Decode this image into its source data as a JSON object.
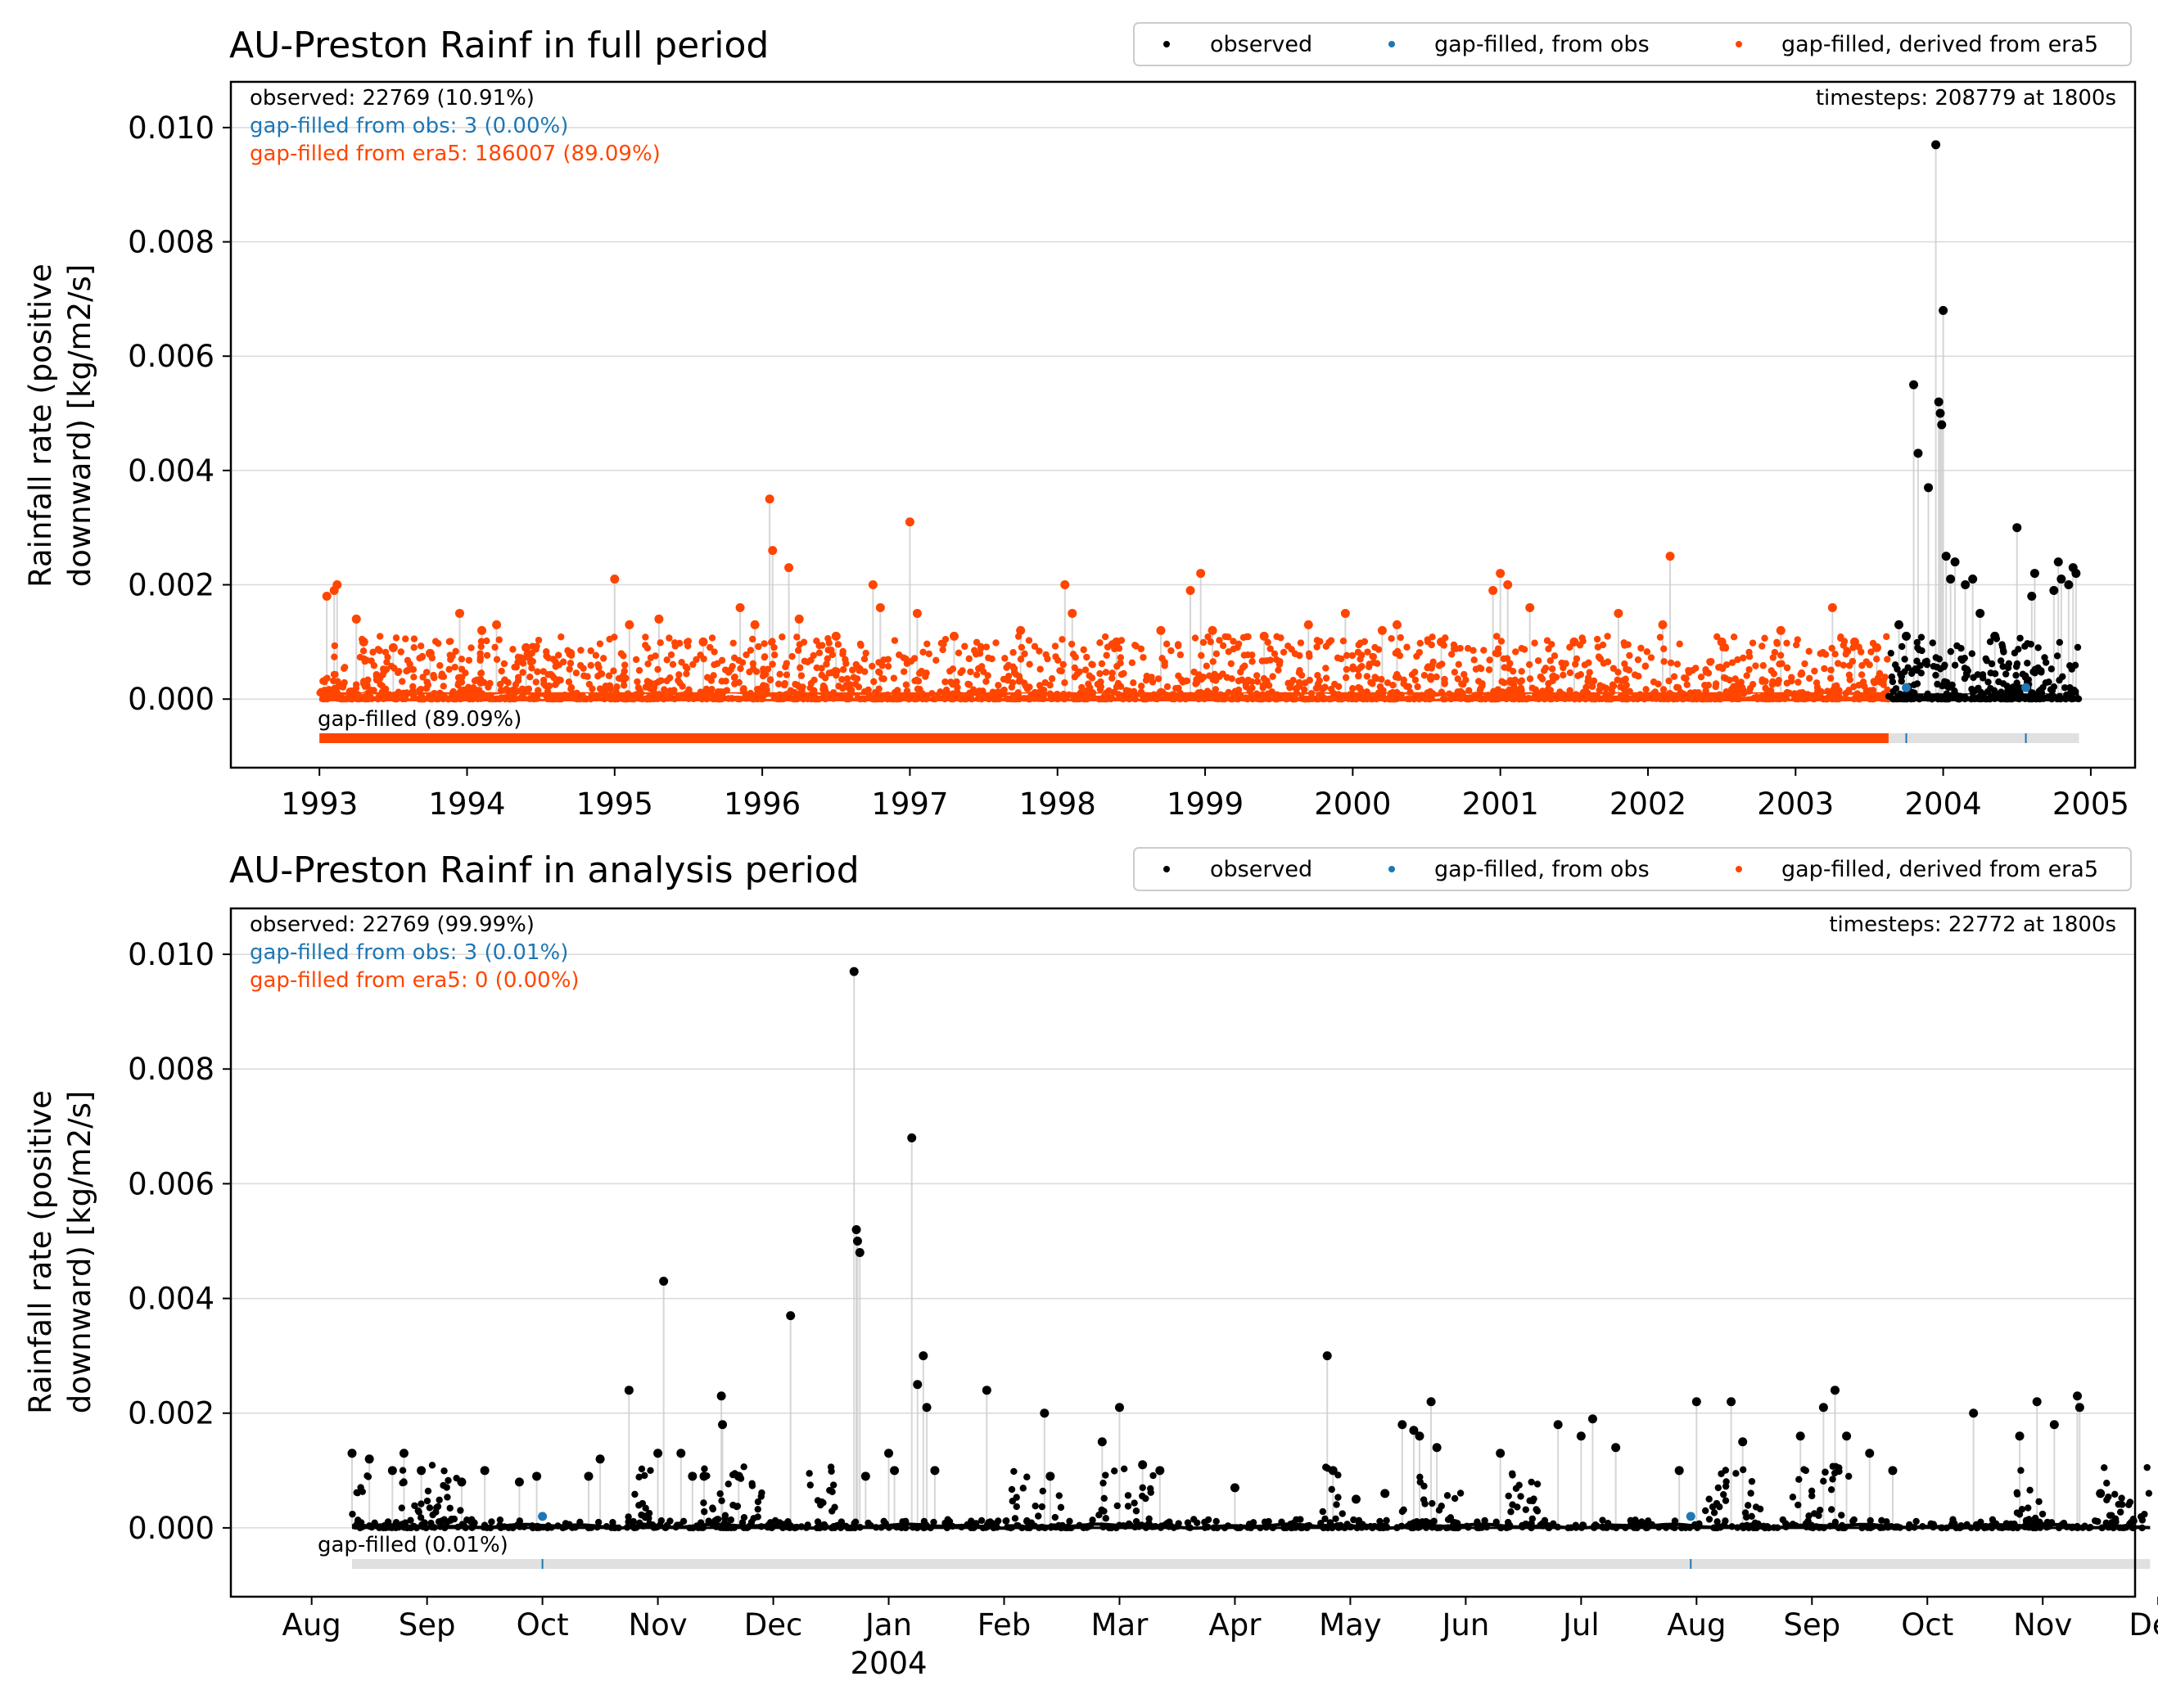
{
  "colors": {
    "observed": "#000000",
    "gapfilled_obs": "#1f77b4",
    "gapfilled_era5": "#ff4500",
    "grid": "#d9d9d9",
    "bar_bg": "#e0e0e0",
    "spike": "#cccccc"
  },
  "chart_data": [
    {
      "type": "scatter",
      "title": "AU-Preston Rainf in full period",
      "ylabel_line1": "Rainfall rate (positive",
      "ylabel_line2": "downward) [kg/m2/s]",
      "ylim": [
        -0.0012,
        0.0108
      ],
      "xlim": [
        1992.4,
        2005.3
      ],
      "yticks": [
        0.0,
        0.002,
        0.004,
        0.006,
        0.008,
        0.01
      ],
      "ytick_labels": [
        "0.000",
        "0.002",
        "0.004",
        "0.006",
        "0.008",
        "0.010"
      ],
      "xticks": [
        1993,
        1994,
        1995,
        1996,
        1997,
        1998,
        1999,
        2000,
        2001,
        2002,
        2003,
        2004,
        2005
      ],
      "xtick_labels": [
        "1993",
        "1994",
        "1995",
        "1996",
        "1997",
        "1998",
        "1999",
        "2000",
        "2001",
        "2002",
        "2003",
        "2004",
        "2005"
      ],
      "grid": true,
      "legend": {
        "placement": "top-right",
        "entries": [
          {
            "label": "observed",
            "color": "#000000"
          },
          {
            "label": "gap-filled, from obs",
            "color": "#1f77b4"
          },
          {
            "label": "gap-filled, derived from era5",
            "color": "#ff4500"
          }
        ]
      },
      "annotations": {
        "observed": "observed: 22769 (10.91%)",
        "gapfilled_obs": "gap-filled from obs: 3 (0.00%)",
        "gapfilled_era5": "gap-filled from era5: 186007 (89.09%)",
        "timesteps": "timesteps: 208779 at 1800s",
        "gapfilled_bar": "gap-filled (89.09%)"
      },
      "data_start": 1993.0,
      "data_end": 2004.92,
      "observed_start": 2003.63,
      "gapfilled_obs_marks": [
        2003.75,
        2004.56
      ],
      "series": [
        {
          "name": "gap-filled, derived from era5",
          "points": [
            [
              1993.05,
              0.0018
            ],
            [
              1993.1,
              0.0019
            ],
            [
              1993.12,
              0.002
            ],
            [
              1993.25,
              0.0014
            ],
            [
              1993.3,
              0.001
            ],
            [
              1993.5,
              0.0009
            ],
            [
              1993.75,
              0.0008
            ],
            [
              1993.95,
              0.0015
            ],
            [
              1994.1,
              0.0012
            ],
            [
              1994.2,
              0.0013
            ],
            [
              1994.4,
              0.0009
            ],
            [
              1994.7,
              0.0008
            ],
            [
              1995.0,
              0.0021
            ],
            [
              1995.1,
              0.0013
            ],
            [
              1995.3,
              0.0014
            ],
            [
              1995.6,
              0.001
            ],
            [
              1995.85,
              0.0016
            ],
            [
              1995.95,
              0.0013
            ],
            [
              1996.05,
              0.0035
            ],
            [
              1996.07,
              0.0026
            ],
            [
              1996.18,
              0.0023
            ],
            [
              1996.25,
              0.0014
            ],
            [
              1996.5,
              0.0011
            ],
            [
              1996.75,
              0.002
            ],
            [
              1996.8,
              0.0016
            ],
            [
              1997.0,
              0.0031
            ],
            [
              1997.05,
              0.0015
            ],
            [
              1997.3,
              0.0011
            ],
            [
              1997.75,
              0.0012
            ],
            [
              1998.05,
              0.002
            ],
            [
              1998.1,
              0.0015
            ],
            [
              1998.4,
              0.001
            ],
            [
              1998.7,
              0.0012
            ],
            [
              1998.9,
              0.0019
            ],
            [
              1998.97,
              0.0022
            ],
            [
              1999.05,
              0.0012
            ],
            [
              1999.4,
              0.0011
            ],
            [
              1999.7,
              0.0013
            ],
            [
              1999.95,
              0.0015
            ],
            [
              2000.2,
              0.0012
            ],
            [
              2000.3,
              0.0013
            ],
            [
              2000.6,
              0.001
            ],
            [
              2000.95,
              0.0019
            ],
            [
              2001.0,
              0.0022
            ],
            [
              2001.05,
              0.002
            ],
            [
              2001.2,
              0.0016
            ],
            [
              2001.5,
              0.001
            ],
            [
              2001.8,
              0.0015
            ],
            [
              2002.1,
              0.0013
            ],
            [
              2002.15,
              0.0025
            ],
            [
              2002.5,
              0.001
            ],
            [
              2002.9,
              0.0012
            ],
            [
              2003.25,
              0.0016
            ],
            [
              2003.4,
              0.001
            ],
            [
              2003.55,
              0.0009
            ]
          ]
        },
        {
          "name": "observed",
          "points": [
            [
              2003.7,
              0.0013
            ],
            [
              2003.75,
              0.0011
            ],
            [
              2003.8,
              0.0055
            ],
            [
              2003.83,
              0.0043
            ],
            [
              2003.9,
              0.0037
            ],
            [
              2003.95,
              0.0097
            ],
            [
              2003.97,
              0.0052
            ],
            [
              2003.98,
              0.005
            ],
            [
              2003.99,
              0.0048
            ],
            [
              2004.0,
              0.0068
            ],
            [
              2004.02,
              0.0025
            ],
            [
              2004.05,
              0.0021
            ],
            [
              2004.08,
              0.0024
            ],
            [
              2004.15,
              0.002
            ],
            [
              2004.2,
              0.0021
            ],
            [
              2004.25,
              0.0015
            ],
            [
              2004.35,
              0.0011
            ],
            [
              2004.5,
              0.003
            ],
            [
              2004.6,
              0.0018
            ],
            [
              2004.62,
              0.0022
            ],
            [
              2004.75,
              0.0019
            ],
            [
              2004.78,
              0.0024
            ],
            [
              2004.8,
              0.0021
            ],
            [
              2004.85,
              0.002
            ],
            [
              2004.88,
              0.0023
            ],
            [
              2004.9,
              0.0022
            ]
          ]
        },
        {
          "name": "gap-filled, from obs",
          "points": [
            [
              2003.75,
              0.0002
            ],
            [
              2004.56,
              0.0002
            ]
          ]
        }
      ]
    },
    {
      "type": "scatter",
      "title": "AU-Preston Rainf in analysis period",
      "ylabel_line1": "Rainfall rate (positive",
      "ylabel_line2": "downward) [kg/m2/s]",
      "ylim": [
        -0.0012,
        0.0108
      ],
      "xlim": [
        -0.7,
        15.8
      ],
      "yticks": [
        0.0,
        0.002,
        0.004,
        0.006,
        0.008,
        0.01
      ],
      "ytick_labels": [
        "0.000",
        "0.002",
        "0.004",
        "0.006",
        "0.008",
        "0.010"
      ],
      "xticks": [
        0,
        1,
        2,
        3,
        4,
        5,
        6,
        7,
        8,
        9,
        10,
        11,
        12,
        13,
        14,
        15,
        16
      ],
      "xtick_labels": [
        "Aug",
        "Sep",
        "Oct",
        "Nov",
        "Dec",
        "Jan",
        "Feb",
        "Mar",
        "Apr",
        "May",
        "Jun",
        "Jul",
        "Aug",
        "Sep",
        "Oct",
        "Nov",
        "Dec"
      ],
      "xtick_year": {
        "at": 5,
        "label": "2004"
      },
      "grid": true,
      "legend": {
        "placement": "top-right",
        "entries": [
          {
            "label": "observed",
            "color": "#000000"
          },
          {
            "label": "gap-filled, from obs",
            "color": "#1f77b4"
          },
          {
            "label": "gap-filled, derived from era5",
            "color": "#ff4500"
          }
        ]
      },
      "annotations": {
        "observed": "observed: 22769 (99.99%)",
        "gapfilled_obs": "gap-filled from obs: 3 (0.01%)",
        "gapfilled_era5": "gap-filled from era5: 0 (0.00%)",
        "timesteps": "timesteps: 22772 at 1800s",
        "gapfilled_bar": "gap-filled (0.01%)"
      },
      "data_start": 0.35,
      "data_end": 15.93,
      "gapfilled_obs_marks": [
        2.0,
        11.95
      ],
      "series": [
        {
          "name": "observed",
          "points": [
            [
              0.35,
              0.0013
            ],
            [
              0.5,
              0.0012
            ],
            [
              0.7,
              0.001
            ],
            [
              0.8,
              0.0013
            ],
            [
              0.95,
              0.001
            ],
            [
              1.3,
              0.0008
            ],
            [
              1.5,
              0.001
            ],
            [
              1.8,
              0.0008
            ],
            [
              1.95,
              0.0009
            ],
            [
              2.4,
              0.0009
            ],
            [
              2.5,
              0.0012
            ],
            [
              2.75,
              0.0024
            ],
            [
              3.0,
              0.0013
            ],
            [
              3.05,
              0.0043
            ],
            [
              3.2,
              0.0013
            ],
            [
              3.3,
              0.0009
            ],
            [
              3.4,
              0.0009
            ],
            [
              3.55,
              0.0023
            ],
            [
              3.56,
              0.0018
            ],
            [
              3.7,
              0.0009
            ],
            [
              4.15,
              0.0037
            ],
            [
              4.7,
              0.0097
            ],
            [
              4.72,
              0.0052
            ],
            [
              4.73,
              0.005
            ],
            [
              4.75,
              0.0048
            ],
            [
              4.8,
              0.0009
            ],
            [
              5.0,
              0.0013
            ],
            [
              5.05,
              0.001
            ],
            [
              5.2,
              0.0068
            ],
            [
              5.25,
              0.0025
            ],
            [
              5.3,
              0.003
            ],
            [
              5.33,
              0.0021
            ],
            [
              5.4,
              0.001
            ],
            [
              5.85,
              0.0024
            ],
            [
              6.35,
              0.002
            ],
            [
              6.4,
              0.0009
            ],
            [
              6.85,
              0.0015
            ],
            [
              7.0,
              0.0021
            ],
            [
              7.2,
              0.0011
            ],
            [
              7.35,
              0.001
            ],
            [
              8.0,
              0.0007
            ],
            [
              8.8,
              0.003
            ],
            [
              8.85,
              0.001
            ],
            [
              9.05,
              0.0005
            ],
            [
              9.3,
              0.0006
            ],
            [
              9.45,
              0.0018
            ],
            [
              9.55,
              0.0017
            ],
            [
              9.6,
              0.0016
            ],
            [
              9.7,
              0.0022
            ],
            [
              9.75,
              0.0014
            ],
            [
              10.3,
              0.0013
            ],
            [
              10.8,
              0.0018
            ],
            [
              11.0,
              0.0016
            ],
            [
              11.1,
              0.0019
            ],
            [
              11.3,
              0.0014
            ],
            [
              11.85,
              0.001
            ],
            [
              12.0,
              0.0022
            ],
            [
              12.3,
              0.0022
            ],
            [
              12.4,
              0.0015
            ],
            [
              12.9,
              0.0016
            ],
            [
              13.1,
              0.0021
            ],
            [
              13.2,
              0.0024
            ],
            [
              13.3,
              0.0016
            ],
            [
              13.5,
              0.0013
            ],
            [
              13.7,
              0.001
            ],
            [
              14.4,
              0.002
            ],
            [
              14.8,
              0.0016
            ],
            [
              14.95,
              0.0022
            ],
            [
              15.1,
              0.0018
            ],
            [
              15.3,
              0.0023
            ],
            [
              15.32,
              0.0021
            ],
            [
              15.5,
              0.0006
            ]
          ]
        },
        {
          "name": "gap-filled, from obs",
          "points": [
            [
              2.0,
              0.0002
            ],
            [
              11.95,
              0.0002
            ]
          ]
        }
      ]
    }
  ]
}
